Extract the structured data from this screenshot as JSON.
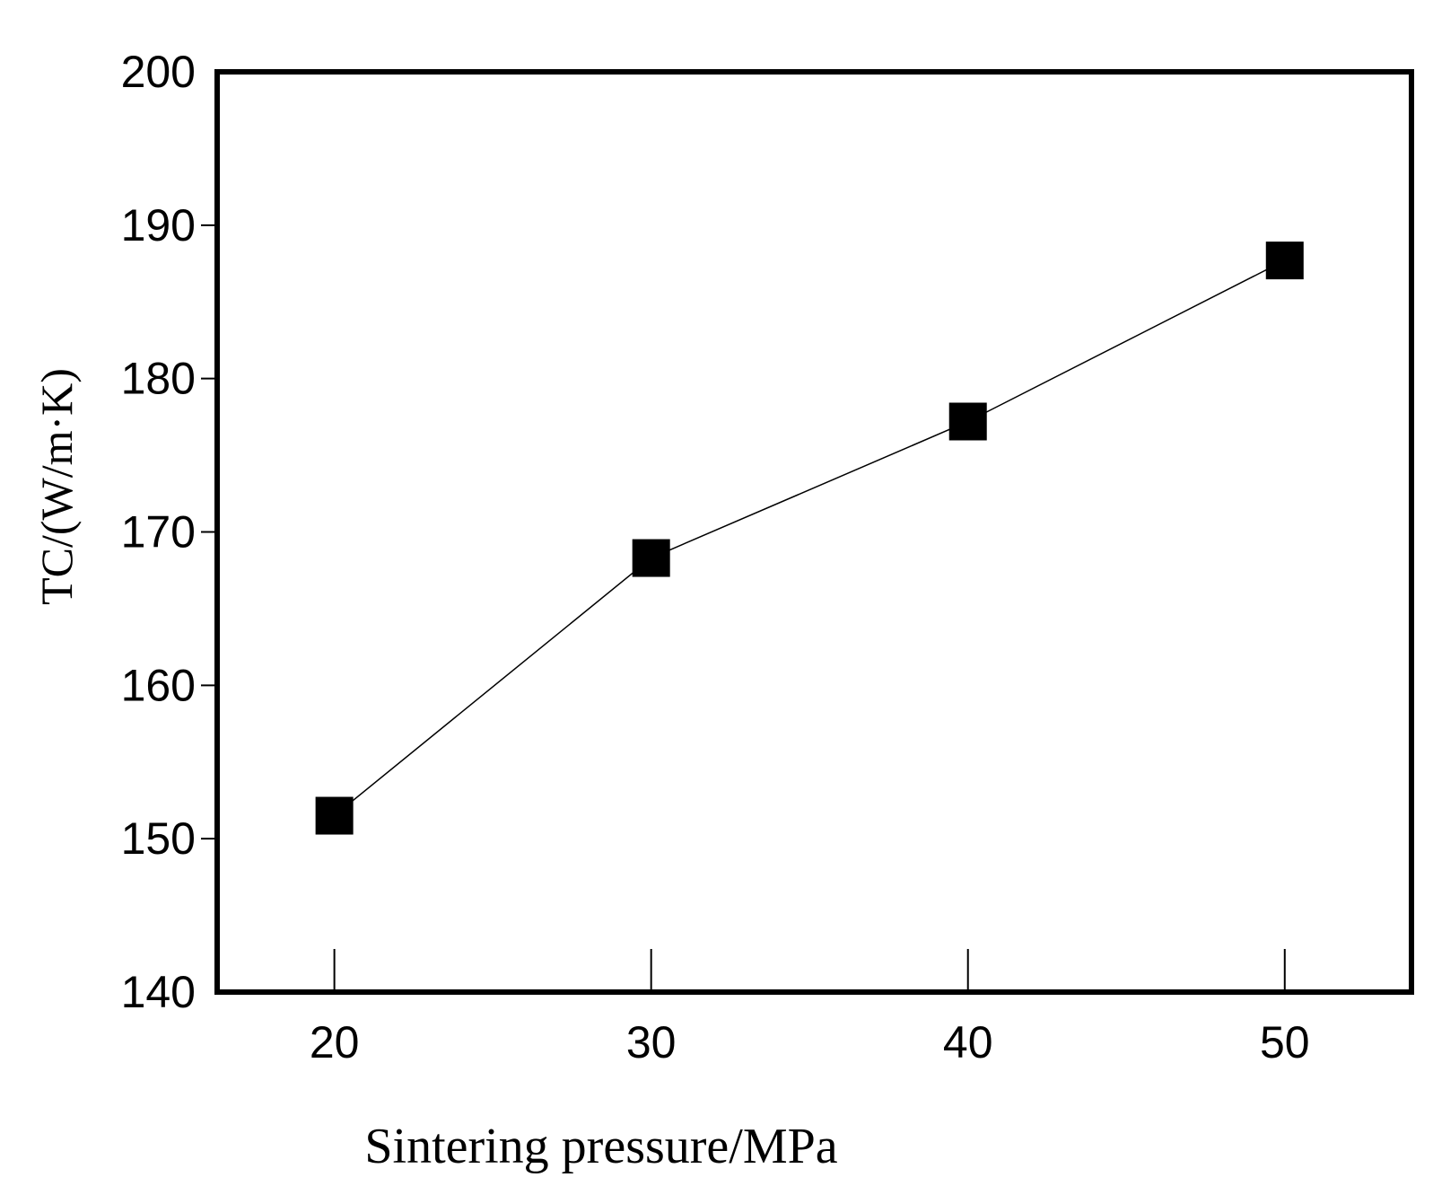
{
  "chart_data": {
    "type": "line",
    "title": "",
    "xlabel": "Sintering pressure/MPa",
    "ylabel": "TC/(W/m·K)",
    "x": [
      20,
      30,
      40,
      50
    ],
    "series": [
      {
        "name": "TC",
        "values": [
          151.5,
          168.3,
          177.2,
          187.7
        ],
        "marker": "square",
        "color": "#000000"
      }
    ],
    "xticks": [
      20,
      30,
      40,
      50
    ],
    "yticks": [
      140,
      150,
      160,
      170,
      180,
      190,
      200
    ],
    "xlim": [
      16.3,
      54.0
    ],
    "ylim": [
      140,
      200
    ],
    "grid": false,
    "legend": "none"
  }
}
